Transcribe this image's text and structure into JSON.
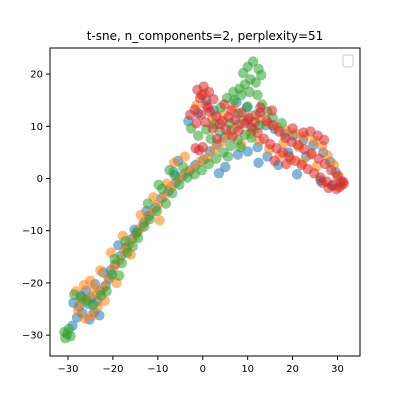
{
  "chart_data": {
    "type": "scatter",
    "title": "t-sne, n_components=2, perplexity=51",
    "xlabel": "",
    "ylabel": "",
    "xlim": [
      -34,
      35
    ],
    "ylim": [
      -34,
      25
    ],
    "xticks": [
      -30,
      -20,
      -10,
      0,
      10,
      20,
      30
    ],
    "yticks": [
      -30,
      -20,
      -10,
      0,
      10,
      20
    ],
    "xtick_labels": [
      "−30",
      "−20",
      "−10",
      "0",
      "10",
      "20",
      "30"
    ],
    "ytick_labels": [
      "−30",
      "−20",
      "−10",
      "0",
      "10",
      "20"
    ],
    "grid": false,
    "legend": {
      "placement": "top-right",
      "entries": []
    },
    "marker_alpha": 0.55,
    "series": [
      {
        "color": "#1f77b4",
        "points": [
          [
            -27.5,
            -24.5
          ],
          [
            -26.8,
            -25.8
          ],
          [
            -25.5,
            -24.0
          ],
          [
            -24.2,
            -25.6
          ],
          [
            -27.2,
            -22.5
          ],
          [
            -26.0,
            -21.5
          ],
          [
            -24.8,
            -22.8
          ],
          [
            -23.5,
            -23.5
          ],
          [
            -22.8,
            -21.6
          ],
          [
            -21.6,
            -20.5
          ],
          [
            -20.8,
            -19.2
          ],
          [
            -22.2,
            -18.0
          ],
          [
            -19.5,
            -16.5
          ],
          [
            -18.2,
            -14.8
          ],
          [
            -17.0,
            -13.2
          ],
          [
            -15.8,
            -11.6
          ],
          [
            -14.5,
            -10.2
          ],
          [
            -13.2,
            -8.6
          ],
          [
            -12.0,
            -7.2
          ],
          [
            -10.5,
            -5.6
          ],
          [
            -9.2,
            -3.8
          ],
          [
            -7.6,
            -2.4
          ],
          [
            -6.0,
            -0.8
          ],
          [
            -4.6,
            0.4
          ],
          [
            -3.0,
            1.4
          ],
          [
            -1.6,
            2.6
          ],
          [
            0.2,
            3.6
          ],
          [
            1.6,
            5.2
          ],
          [
            3.2,
            6.5
          ],
          [
            4.8,
            7.8
          ],
          [
            6.4,
            9.2
          ],
          [
            8.2,
            10.4
          ],
          [
            10.0,
            11.2
          ],
          [
            11.8,
            12.2
          ],
          [
            -3.2,
            11.0
          ],
          [
            -1.0,
            12.5
          ],
          [
            0.8,
            15.0
          ],
          [
            2.5,
            13.0
          ],
          [
            7.5,
            14.6
          ],
          [
            9.8,
            13.6
          ],
          [
            14.0,
            10.2
          ],
          [
            16.0,
            9.5
          ],
          [
            18.2,
            8.6
          ],
          [
            20.2,
            8.2
          ],
          [
            22.4,
            7.4
          ],
          [
            24.6,
            6.4
          ],
          [
            26.8,
            5.0
          ],
          [
            28.4,
            3.2
          ],
          [
            29.6,
            1.2
          ],
          [
            30.8,
            -0.6
          ],
          [
            23.0,
            4.2
          ],
          [
            19.0,
            5.0
          ],
          [
            14.4,
            4.2
          ],
          [
            12.2,
            6.0
          ],
          [
            10.0,
            5.2
          ],
          [
            7.8,
            4.6
          ],
          [
            5.0,
            2.2
          ],
          [
            3.6,
            1.0
          ],
          [
            -5.5,
            3.4
          ],
          [
            -6.5,
            1.2
          ],
          [
            -12.5,
            -6.2
          ],
          [
            -15.2,
            -9.8
          ],
          [
            -18.8,
            -12.8
          ],
          [
            -20.5,
            -17.6
          ],
          [
            -24.0,
            -20.2
          ],
          [
            -28.0,
            -26.6
          ],
          [
            -28.8,
            -23.8
          ],
          [
            -25.2,
            -27.0
          ],
          [
            -23.0,
            -26.2
          ],
          [
            -29.0,
            -28.2
          ],
          [
            12.4,
            3.0
          ],
          [
            16.8,
            2.6
          ],
          [
            21.0,
            0.8
          ],
          [
            26.2,
            -0.4
          ],
          [
            28.8,
            -1.4
          ]
        ]
      },
      {
        "color": "#ff7f0e",
        "points": [
          [
            -28.2,
            -21.6
          ],
          [
            -26.4,
            -20.4
          ],
          [
            -25.0,
            -19.6
          ],
          [
            -23.6,
            -22.2
          ],
          [
            -22.0,
            -20.8
          ],
          [
            -27.8,
            -25.2
          ],
          [
            -26.2,
            -26.8
          ],
          [
            -24.6,
            -26.2
          ],
          [
            -23.4,
            -24.6
          ],
          [
            -21.0,
            -19.0
          ],
          [
            -19.8,
            -17.0
          ],
          [
            -18.6,
            -15.6
          ],
          [
            -17.4,
            -13.8
          ],
          [
            -16.4,
            -12.6
          ],
          [
            -15.2,
            -11.2
          ],
          [
            -14.0,
            -9.6
          ],
          [
            -12.8,
            -8.2
          ],
          [
            -11.4,
            -6.6
          ],
          [
            -10.0,
            -5.0
          ],
          [
            -8.6,
            -3.4
          ],
          [
            -7.0,
            -1.6
          ],
          [
            -5.4,
            -0.2
          ],
          [
            -3.8,
            1.0
          ],
          [
            -2.2,
            2.0
          ],
          [
            -0.6,
            3.2
          ],
          [
            1.0,
            4.0
          ],
          [
            2.6,
            5.6
          ],
          [
            4.2,
            7.0
          ],
          [
            5.8,
            8.4
          ],
          [
            7.4,
            9.8
          ],
          [
            9.2,
            11.0
          ],
          [
            11.0,
            12.0
          ],
          [
            12.8,
            11.4
          ],
          [
            14.6,
            10.6
          ],
          [
            16.6,
            9.8
          ],
          [
            18.6,
            9.2
          ],
          [
            20.6,
            8.6
          ],
          [
            22.6,
            8.0
          ],
          [
            24.8,
            7.2
          ],
          [
            26.6,
            6.2
          ],
          [
            27.8,
            4.4
          ],
          [
            29.2,
            2.6
          ],
          [
            30.2,
            0.6
          ],
          [
            31.0,
            -1.2
          ],
          [
            25.4,
            2.4
          ],
          [
            22.2,
            3.0
          ],
          [
            19.6,
            3.6
          ],
          [
            17.2,
            4.4
          ],
          [
            14.8,
            5.6
          ],
          [
            12.6,
            7.2
          ],
          [
            0.4,
            16.2
          ],
          [
            -1.4,
            14.0
          ],
          [
            2.2,
            11.4
          ],
          [
            4.6,
            12.2
          ],
          [
            6.8,
            13.6
          ],
          [
            -4.0,
            4.2
          ],
          [
            -6.4,
            3.0
          ],
          [
            -8.0,
            -1.0
          ],
          [
            -13.8,
            -7.0
          ],
          [
            -17.8,
            -11.0
          ],
          [
            -20.4,
            -14.2
          ],
          [
            -22.8,
            -17.6
          ],
          [
            -25.6,
            -22.8
          ],
          [
            -27.0,
            -23.6
          ],
          [
            -24.2,
            -21.0
          ],
          [
            -21.8,
            -23.4
          ],
          [
            -19.2,
            -20.0
          ],
          [
            -16.0,
            -14.6
          ],
          [
            -9.6,
            -8.0
          ],
          [
            -11.0,
            -3.6
          ],
          [
            8.6,
            6.6
          ],
          [
            10.6,
            8.6
          ],
          [
            18.0,
            6.8
          ],
          [
            21.4,
            6.0
          ],
          [
            24.0,
            4.6
          ]
        ]
      },
      {
        "color": "#2ca02c",
        "points": [
          [
            -30.6,
            -30.6
          ],
          [
            -30.2,
            -29.8
          ],
          [
            -29.8,
            -28.8
          ],
          [
            -29.4,
            -30.2
          ],
          [
            -30.8,
            -29.4
          ],
          [
            -28.6,
            -22.2
          ],
          [
            -27.0,
            -22.8
          ],
          [
            -25.8,
            -23.4
          ],
          [
            -24.4,
            -24.2
          ],
          [
            -22.6,
            -22.4
          ],
          [
            -20.2,
            -18.4
          ],
          [
            -18.0,
            -16.2
          ],
          [
            -16.8,
            -14.2
          ],
          [
            -15.6,
            -13.0
          ],
          [
            -14.4,
            -11.4
          ],
          [
            -13.0,
            -9.2
          ],
          [
            -11.8,
            -7.8
          ],
          [
            -10.2,
            -6.2
          ],
          [
            -9.0,
            -2.0
          ],
          [
            -8.2,
            -4.8
          ],
          [
            -6.8,
            -2.8
          ],
          [
            -5.2,
            -1.2
          ],
          [
            -3.4,
            0.2
          ],
          [
            -1.8,
            0.8
          ],
          [
            -0.2,
            1.6
          ],
          [
            1.4,
            2.8
          ],
          [
            3.0,
            3.8
          ],
          [
            4.6,
            5.0
          ],
          [
            6.2,
            6.2
          ],
          [
            7.8,
            7.4
          ],
          [
            9.4,
            8.4
          ],
          [
            11.2,
            9.4
          ],
          [
            12.6,
            10.2
          ],
          [
            9.0,
            20.2
          ],
          [
            10.0,
            21.4
          ],
          [
            11.2,
            22.4
          ],
          [
            12.4,
            21.0
          ],
          [
            13.0,
            19.8
          ],
          [
            10.6,
            19.0
          ],
          [
            11.8,
            18.4
          ],
          [
            9.4,
            18.0
          ],
          [
            8.2,
            17.2
          ],
          [
            6.8,
            16.6
          ],
          [
            5.4,
            15.4
          ],
          [
            7.0,
            15.0
          ],
          [
            8.6,
            16.0
          ],
          [
            10.4,
            16.6
          ],
          [
            12.2,
            16.0
          ],
          [
            4.0,
            13.6
          ],
          [
            2.6,
            10.4
          ],
          [
            0.8,
            9.4
          ],
          [
            -1.0,
            8.2
          ],
          [
            -2.6,
            9.6
          ],
          [
            1.8,
            7.6
          ],
          [
            3.8,
            9.0
          ],
          [
            6.0,
            10.6
          ],
          [
            8.0,
            12.4
          ],
          [
            10.0,
            13.8
          ],
          [
            -9.8,
            -1.2
          ],
          [
            -6.2,
            0.6
          ],
          [
            -14.8,
            -10.4
          ],
          [
            -17.2,
            -12.0
          ],
          [
            -19.6,
            -15.4
          ],
          [
            -21.4,
            -21.6
          ],
          [
            -18.6,
            -18.6
          ],
          [
            -12.2,
            -4.8
          ],
          [
            -7.4,
            1.6
          ],
          [
            -4.4,
            2.2
          ],
          [
            13.2,
            14.2
          ],
          [
            14.4,
            12.8
          ],
          [
            15.6,
            11.6
          ],
          [
            17.6,
            10.6
          ],
          [
            10.8,
            7.8
          ],
          [
            8.4,
            6.0
          ],
          [
            5.6,
            4.2
          ]
        ]
      },
      {
        "color": "#d62728",
        "points": [
          [
            -1.2,
            17.0
          ],
          [
            0.2,
            17.6
          ],
          [
            1.4,
            16.6
          ],
          [
            -0.6,
            15.4
          ],
          [
            0.8,
            14.0
          ],
          [
            2.4,
            15.2
          ],
          [
            -1.8,
            13.2
          ],
          [
            -0.4,
            12.2
          ],
          [
            1.6,
            12.8
          ],
          [
            3.0,
            12.0
          ],
          [
            4.4,
            11.0
          ],
          [
            5.8,
            11.8
          ],
          [
            7.2,
            11.2
          ],
          [
            8.6,
            12.6
          ],
          [
            10.2,
            11.6
          ],
          [
            11.6,
            10.8
          ],
          [
            12.8,
            12.6
          ],
          [
            14.2,
            11.0
          ],
          [
            15.6,
            10.2
          ],
          [
            17.0,
            9.0
          ],
          [
            18.4,
            7.8
          ],
          [
            19.8,
            7.0
          ],
          [
            21.2,
            6.4
          ],
          [
            22.6,
            5.6
          ],
          [
            24.2,
            4.8
          ],
          [
            25.8,
            3.8
          ],
          [
            27.2,
            2.8
          ],
          [
            28.6,
            1.6
          ],
          [
            30.0,
            0.4
          ],
          [
            31.2,
            -0.6
          ],
          [
            30.4,
            -1.6
          ],
          [
            29.0,
            -1.2
          ],
          [
            27.6,
            -0.6
          ],
          [
            26.2,
            0.2
          ],
          [
            24.8,
            1.0
          ],
          [
            23.4,
            1.8
          ],
          [
            22.0,
            2.6
          ],
          [
            20.6,
            3.4
          ],
          [
            19.2,
            4.2
          ],
          [
            17.8,
            5.0
          ],
          [
            16.4,
            5.8
          ],
          [
            15.0,
            6.6
          ],
          [
            13.6,
            7.6
          ],
          [
            12.2,
            8.8
          ],
          [
            10.8,
            9.8
          ],
          [
            9.4,
            10.6
          ],
          [
            8.0,
            9.2
          ],
          [
            6.6,
            8.0
          ],
          [
            5.2,
            9.4
          ],
          [
            3.8,
            10.4
          ],
          [
            2.2,
            9.6
          ],
          [
            0.6,
            10.8
          ],
          [
            -1.4,
            10.6
          ],
          [
            -2.8,
            12.2
          ],
          [
            0.0,
            6.0
          ],
          [
            -0.8,
            5.4
          ],
          [
            -1.6,
            5.8
          ],
          [
            12.8,
            13.6
          ],
          [
            15.4,
            13.0
          ],
          [
            24.0,
            9.0
          ],
          [
            25.6,
            8.2
          ],
          [
            27.0,
            7.4
          ],
          [
            20.0,
            9.6
          ],
          [
            22.4,
            8.8
          ],
          [
            26.6,
            -0.8
          ],
          [
            28.0,
            -1.8
          ],
          [
            29.8,
            -2.0
          ],
          [
            31.4,
            -1.0
          ],
          [
            18.6,
            2.8
          ],
          [
            16.0,
            3.4
          ],
          [
            3.2,
            7.6
          ],
          [
            1.2,
            13.6
          ],
          [
            -0.2,
            16.0
          ],
          [
            4.8,
            14.2
          ],
          [
            6.4,
            13.0
          ]
        ]
      }
    ]
  }
}
